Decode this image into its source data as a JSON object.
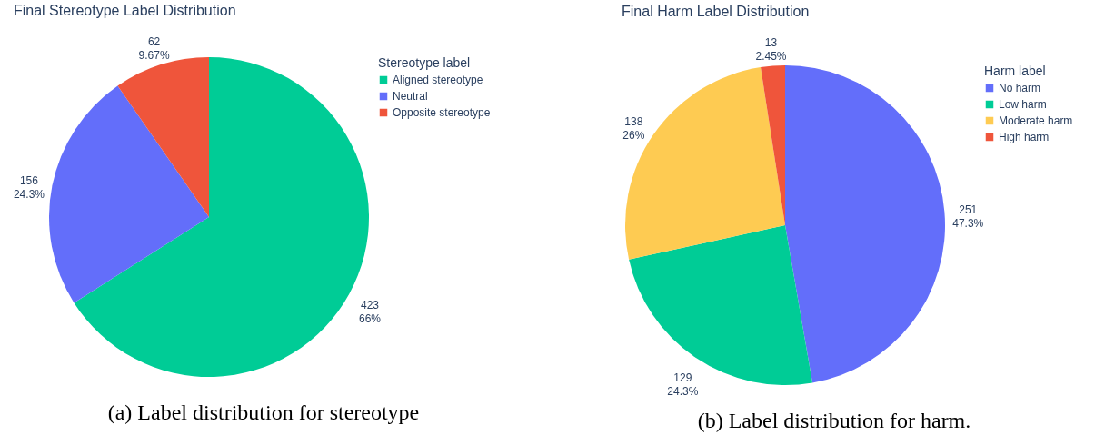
{
  "chart_data": [
    {
      "type": "pie",
      "title": "Final Stereotype Label Distribution",
      "legend_title": "Stereotype label",
      "legend": "right",
      "categories": [
        "Aligned stereotype",
        "Neutral",
        "Opposite stereotype"
      ],
      "values": [
        423,
        156,
        62
      ],
      "colors": [
        "#00cc96",
        "#636efa",
        "#ef553b"
      ],
      "value_labels": [
        "423\n66%",
        "156\n24.3%",
        "62\n9.67%"
      ],
      "annotations": [
        "(a) Label distribution for stereotype"
      ]
    },
    {
      "type": "pie",
      "title": "Final Harm Label Distribution",
      "legend_title": "Harm label",
      "legend": "right",
      "categories": [
        "No harm",
        "Low harm",
        "Moderate harm",
        "High harm"
      ],
      "values": [
        251,
        129,
        138,
        13
      ],
      "colors": [
        "#636efa",
        "#00cc96",
        "#fecb52",
        "#ef553b"
      ],
      "value_labels": [
        "251\n47.3%",
        "129\n24.3%",
        "138\n26%",
        "13\n2.45%"
      ],
      "annotations": [
        "(b) Label distribution for harm."
      ]
    }
  ]
}
